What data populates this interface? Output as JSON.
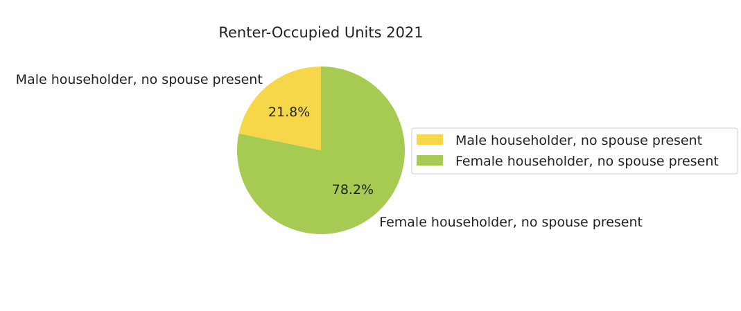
{
  "chart_data": {
    "type": "pie",
    "title": "Renter-Occupied Units 2021",
    "start_angle_deg": 90,
    "counterclock": true,
    "slices": [
      {
        "label": "Male householder, no spouse present",
        "value": 21.8,
        "pct_label": "21.8%",
        "color": "#F7D74A"
      },
      {
        "label": "Female householder, no spouse present",
        "value": 78.2,
        "pct_label": "78.2%",
        "color": "#A6CA52"
      }
    ],
    "legend": {
      "placement": "right",
      "entries": [
        "Male householder, no spouse present",
        "Female householder, no spouse present"
      ]
    }
  }
}
